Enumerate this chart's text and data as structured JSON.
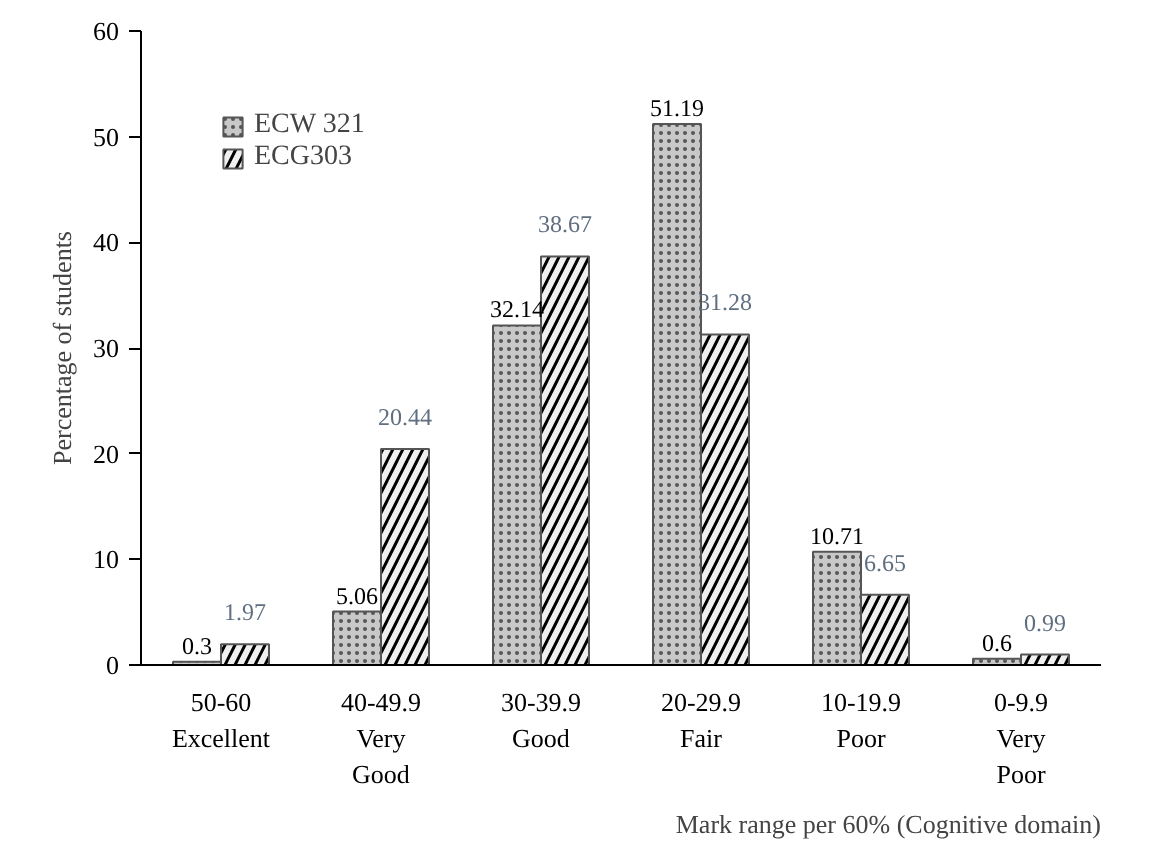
{
  "chart_data": {
    "type": "bar",
    "xlabel": "Mark range per 60% (Cognitive domain)",
    "ylabel": "Percentage of students",
    "categories": [
      "50-60\nExcellent",
      "40-49.9\nVery\nGood",
      "30-39.9\nGood",
      "20-29.9\nFair",
      "10-19.9\nPoor",
      "0-9.9\nVery\nPoor"
    ],
    "series": [
      {
        "name": "ECW 321",
        "color": "#c8c8c8",
        "values": [
          0.3,
          5.06,
          32.14,
          51.19,
          10.71,
          0.6
        ]
      },
      {
        "name": "ECG303",
        "color": "#f0f0f0",
        "values": [
          1.97,
          20.44,
          38.67,
          31.28,
          6.65,
          0.99
        ]
      }
    ],
    "ylim": [
      0,
      60
    ],
    "yticks": [
      0,
      10,
      20,
      30,
      40,
      50,
      60
    ],
    "grid": false,
    "legend": "top left",
    "data_labels": true
  }
}
